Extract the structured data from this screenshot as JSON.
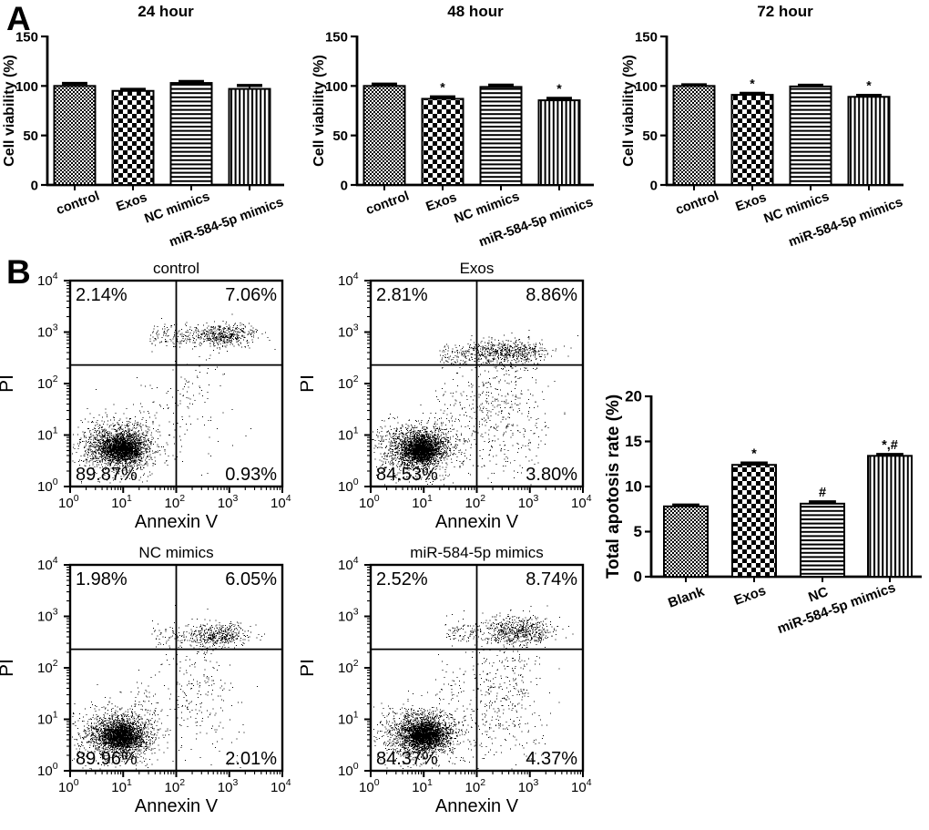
{
  "panels": {
    "a_label": "A",
    "b_label": "B"
  },
  "chart_data": [
    {
      "type": "bar",
      "geom": "panelA",
      "title": "24 hour",
      "ylabel": "Cell viability (%)",
      "ylim": [
        0,
        150
      ],
      "yticks": [
        0,
        50,
        100,
        150
      ],
      "categories": [
        "control",
        "Exos",
        "NC mimics",
        "miR-584-5p mimics"
      ],
      "patterns": [
        "fine-checker",
        "checker",
        "hlines",
        "vlines"
      ],
      "values": [
        100,
        95,
        103,
        97
      ],
      "errors": [
        2.5,
        1.5,
        1.5,
        3.5
      ],
      "sig": [
        "",
        "",
        "",
        ""
      ]
    },
    {
      "type": "bar",
      "geom": "panelA",
      "title": "48 hour",
      "ylabel": "Cell viability (%)",
      "ylim": [
        0,
        150
      ],
      "yticks": [
        0,
        50,
        100,
        150
      ],
      "categories": [
        "control",
        "Exos",
        "NC mimics",
        "miR-584-5p mimics"
      ],
      "patterns": [
        "fine-checker",
        "checker",
        "hlines",
        "vlines"
      ],
      "values": [
        100,
        87,
        99,
        85.5
      ],
      "errors": [
        1.8,
        2,
        1.8,
        2
      ],
      "sig": [
        "",
        "*",
        "",
        "*"
      ]
    },
    {
      "type": "bar",
      "geom": "panelA",
      "title": "72 hour",
      "ylabel": "Cell viability (%)",
      "ylim": [
        0,
        150
      ],
      "yticks": [
        0,
        50,
        100,
        150
      ],
      "categories": [
        "control",
        "Exos",
        "NC mimics",
        "miR-584-5p mimics"
      ],
      "patterns": [
        "fine-checker",
        "checker",
        "hlines",
        "vlines"
      ],
      "values": [
        100,
        91,
        99.5,
        89
      ],
      "errors": [
        1.2,
        1.5,
        1.2,
        1.5
      ],
      "sig": [
        "",
        "*",
        "",
        "*"
      ]
    },
    {
      "type": "scatter",
      "geom": "flow",
      "title": "control",
      "xlabel": "Annexin V",
      "ylabel": "PI",
      "xlim_log": [
        0,
        4
      ],
      "ylim_log": [
        0,
        4
      ],
      "quadrant": {
        "x_log": 2,
        "y_log": 2.36
      },
      "quadrant_pcts": {
        "ul": "2.14%",
        "ur": "7.06%",
        "ll": "89.87%",
        "lr": "0.93%"
      },
      "seed": 7,
      "clusters": [
        [
          "g",
          1500,
          0.92,
          0.78,
          0.3,
          0.2
        ],
        [
          "g",
          1300,
          1.0,
          0.72,
          0.17,
          0.12
        ],
        [
          "g",
          380,
          0.85,
          0.78,
          0.5,
          0.33
        ],
        [
          "b",
          70,
          0.15,
          1.6,
          0.35,
          0.3
        ],
        [
          "g",
          420,
          2.95,
          2.95,
          0.26,
          0.11
        ],
        [
          "b",
          200,
          1.5,
          2.95,
          2.92,
          0.11
        ],
        [
          "g",
          70,
          2.4,
          2.1,
          0.25,
          0.5
        ],
        [
          "b",
          50,
          1.3,
          2.2,
          1.4,
          0.4
        ],
        [
          "b",
          12,
          2.3,
          3.4,
          0.8,
          0.45
        ]
      ]
    },
    {
      "type": "scatter",
      "geom": "flow",
      "title": "Exos",
      "xlabel": "Annexin V",
      "ylabel": "PI",
      "xlim_log": [
        0,
        4
      ],
      "ylim_log": [
        0,
        4
      ],
      "quadrant": {
        "x_log": 2,
        "y_log": 2.36
      },
      "quadrant_pcts": {
        "ul": "2.81%",
        "ur": "8.86%",
        "ll": "84.53%",
        "lr": "3.80%"
      },
      "seed": 13,
      "clusters": [
        [
          "g",
          1500,
          0.9,
          0.75,
          0.3,
          0.2
        ],
        [
          "g",
          1300,
          0.97,
          0.7,
          0.17,
          0.12
        ],
        [
          "g",
          380,
          0.85,
          0.75,
          0.5,
          0.33
        ],
        [
          "b",
          70,
          0.15,
          1.6,
          0.35,
          0.3
        ],
        [
          "g",
          480,
          2.55,
          2.62,
          0.38,
          0.12
        ],
        [
          "b",
          260,
          1.3,
          3.2,
          2.55,
          0.13
        ],
        [
          "g",
          300,
          2.5,
          1.6,
          0.38,
          0.55
        ],
        [
          "b",
          140,
          1.2,
          2.3,
          1.3,
          0.45
        ],
        [
          "b",
          70,
          2.2,
          3.3,
          0.75,
          0.45
        ]
      ]
    },
    {
      "type": "scatter",
      "geom": "flow",
      "title": "NC mimics",
      "xlabel": "Annexin V",
      "ylabel": "PI",
      "xlim_log": [
        0,
        4
      ],
      "ylim_log": [
        0,
        4
      ],
      "quadrant": {
        "x_log": 2,
        "y_log": 2.36
      },
      "quadrant_pcts": {
        "ul": "1.98%",
        "ur": "6.05%",
        "ll": "89.96%",
        "lr": "2.01%"
      },
      "seed": 21,
      "clusters": [
        [
          "g",
          1500,
          0.9,
          0.7,
          0.3,
          0.2
        ],
        [
          "g",
          1300,
          0.97,
          0.66,
          0.17,
          0.12
        ],
        [
          "g",
          380,
          0.85,
          0.7,
          0.5,
          0.33
        ],
        [
          "b",
          70,
          0.15,
          1.6,
          0.35,
          0.3
        ],
        [
          "g",
          360,
          2.75,
          2.62,
          0.3,
          0.12
        ],
        [
          "b",
          170,
          1.5,
          3.2,
          2.6,
          0.12
        ],
        [
          "g",
          150,
          2.45,
          1.7,
          0.3,
          0.55
        ],
        [
          "b",
          90,
          1.2,
          2.3,
          1.3,
          0.45
        ],
        [
          "b",
          35,
          2.2,
          3.3,
          0.7,
          0.45
        ]
      ]
    },
    {
      "type": "scatter",
      "geom": "flow",
      "title": "miR-584-5p mimics",
      "xlabel": "Annexin V",
      "ylabel": "PI",
      "xlim_log": [
        0,
        4
      ],
      "ylim_log": [
        0,
        4
      ],
      "quadrant": {
        "x_log": 2,
        "y_log": 2.36
      },
      "quadrant_pcts": {
        "ul": "2.52%",
        "ur": "8.74%",
        "ll": "84.37%",
        "lr": "4.37%"
      },
      "seed": 42,
      "clusters": [
        [
          "g",
          1500,
          0.95,
          0.72,
          0.3,
          0.2
        ],
        [
          "g",
          1300,
          1.02,
          0.68,
          0.17,
          0.12
        ],
        [
          "g",
          380,
          0.88,
          0.72,
          0.5,
          0.33
        ],
        [
          "b",
          70,
          0.15,
          1.6,
          0.35,
          0.3
        ],
        [
          "g",
          450,
          2.8,
          2.72,
          0.3,
          0.14
        ],
        [
          "b",
          240,
          1.4,
          3.3,
          2.68,
          0.15
        ],
        [
          "g",
          280,
          2.55,
          1.7,
          0.35,
          0.6
        ],
        [
          "b",
          130,
          1.2,
          2.3,
          1.25,
          0.45
        ],
        [
          "b",
          70,
          2.2,
          3.3,
          0.7,
          0.4
        ]
      ]
    },
    {
      "type": "bar",
      "geom": "apop",
      "title": "",
      "ylabel": "Total apotosis rate (%)",
      "ylim": [
        0,
        20
      ],
      "yticks": [
        0,
        5,
        10,
        15,
        20
      ],
      "categories": [
        "Blank",
        "Exos",
        "NC",
        "miR-584-5p mimics"
      ],
      "patterns": [
        "fine-checker",
        "checker",
        "hlines",
        "vlines"
      ],
      "values": [
        7.8,
        12.4,
        8.1,
        13.4
      ],
      "errors": [
        0.15,
        0.2,
        0.2,
        0.15
      ],
      "sig": [
        "",
        "*",
        "#",
        "*,#"
      ]
    }
  ]
}
